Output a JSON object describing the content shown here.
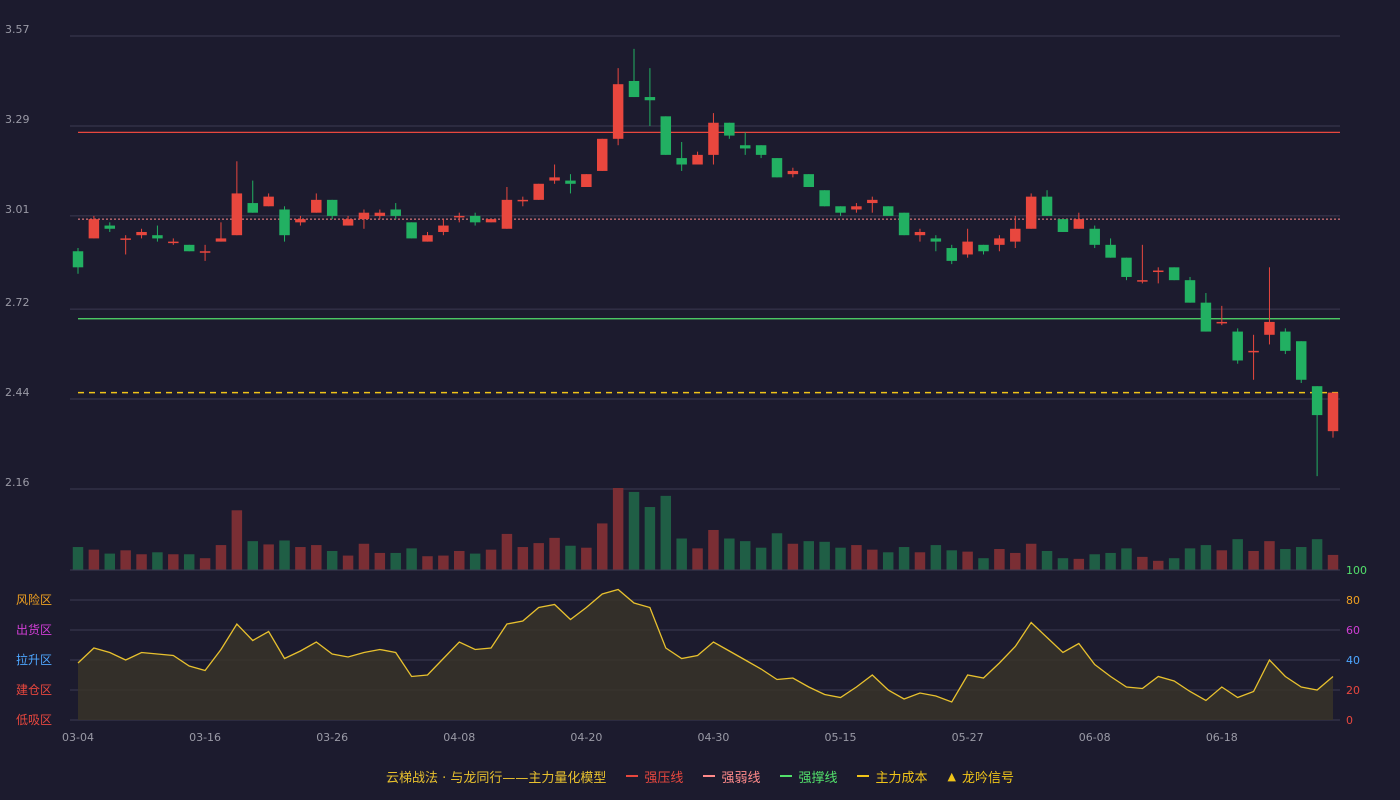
{
  "colors": {
    "background": "#1c1b2e",
    "up": "#e8473e",
    "down": "#22b062",
    "resistance": "#e8473e",
    "weak": "#ff8a8a",
    "support": "#52e06b",
    "cost": "#f0c419",
    "indicator_line": "#e8c12e",
    "grid": "#3b3b52",
    "axis_text": "#9a9aa6"
  },
  "chart_data": {
    "type": "candlestick",
    "price_ticks": [
      3.57,
      3.29,
      3.01,
      2.72,
      2.44,
      2.16
    ],
    "price_range": [
      2.16,
      3.57
    ],
    "x_ticks": [
      {
        "index": 0,
        "label": "03-04"
      },
      {
        "index": 8,
        "label": "03-16"
      },
      {
        "index": 16,
        "label": "03-26"
      },
      {
        "index": 24,
        "label": "04-08"
      },
      {
        "index": 32,
        "label": "04-20"
      },
      {
        "index": 40,
        "label": "04-30"
      },
      {
        "index": 48,
        "label": "05-15"
      },
      {
        "index": 56,
        "label": "05-27"
      },
      {
        "index": 64,
        "label": "06-08"
      },
      {
        "index": 72,
        "label": "06-18"
      }
    ],
    "candles": [
      [
        2.9,
        2.85,
        2.91,
        2.83
      ],
      [
        2.94,
        3.0,
        3.01,
        2.94
      ],
      [
        2.98,
        2.97,
        2.99,
        2.96
      ],
      [
        2.94,
        2.94,
        2.95,
        2.89
      ],
      [
        2.95,
        2.96,
        2.97,
        2.94
      ],
      [
        2.95,
        2.94,
        2.98,
        2.93
      ],
      [
        2.93,
        2.93,
        2.94,
        2.92
      ],
      [
        2.92,
        2.9,
        2.92,
        2.9
      ],
      [
        2.9,
        2.9,
        2.92,
        2.87
      ],
      [
        2.93,
        2.94,
        2.99,
        2.93
      ],
      [
        2.95,
        3.08,
        3.18,
        2.95
      ],
      [
        3.05,
        3.02,
        3.12,
        3.02
      ],
      [
        3.04,
        3.07,
        3.08,
        3.04
      ],
      [
        3.03,
        2.95,
        3.04,
        2.93
      ],
      [
        2.99,
        3.0,
        3.01,
        2.98
      ],
      [
        3.02,
        3.06,
        3.08,
        3.02
      ],
      [
        3.06,
        3.01,
        3.06,
        3.0
      ],
      [
        2.98,
        3.0,
        3.01,
        2.98
      ],
      [
        3.0,
        3.02,
        3.03,
        2.97
      ],
      [
        3.01,
        3.02,
        3.03,
        3.0
      ],
      [
        3.03,
        3.01,
        3.05,
        3.0
      ],
      [
        2.99,
        2.94,
        2.99,
        2.94
      ],
      [
        2.93,
        2.95,
        2.96,
        2.93
      ],
      [
        2.96,
        2.98,
        3.0,
        2.95
      ],
      [
        3.01,
        3.01,
        3.02,
        2.99
      ],
      [
        3.01,
        2.99,
        3.02,
        2.98
      ],
      [
        2.99,
        3.0,
        3.0,
        2.99
      ],
      [
        2.97,
        3.06,
        3.1,
        2.97
      ],
      [
        3.06,
        3.06,
        3.07,
        3.04
      ],
      [
        3.06,
        3.11,
        3.11,
        3.06
      ],
      [
        3.12,
        3.13,
        3.17,
        3.11
      ],
      [
        3.12,
        3.11,
        3.14,
        3.08
      ],
      [
        3.1,
        3.14,
        3.14,
        3.1
      ],
      [
        3.15,
        3.25,
        3.25,
        3.15
      ],
      [
        3.25,
        3.42,
        3.47,
        3.23
      ],
      [
        3.43,
        3.38,
        3.53,
        3.38
      ],
      [
        3.38,
        3.37,
        3.47,
        3.29
      ],
      [
        3.32,
        3.2,
        3.32,
        3.2
      ],
      [
        3.19,
        3.17,
        3.24,
        3.15
      ],
      [
        3.17,
        3.2,
        3.21,
        3.17
      ],
      [
        3.2,
        3.3,
        3.33,
        3.17
      ],
      [
        3.3,
        3.26,
        3.3,
        3.25
      ],
      [
        3.23,
        3.22,
        3.27,
        3.2
      ],
      [
        3.23,
        3.2,
        3.23,
        3.19
      ],
      [
        3.19,
        3.13,
        3.19,
        3.13
      ],
      [
        3.14,
        3.15,
        3.16,
        3.13
      ],
      [
        3.14,
        3.1,
        3.14,
        3.1
      ],
      [
        3.09,
        3.04,
        3.09,
        3.04
      ],
      [
        3.04,
        3.02,
        3.04,
        3.01
      ],
      [
        3.03,
        3.04,
        3.05,
        3.02
      ],
      [
        3.05,
        3.06,
        3.07,
        3.02
      ],
      [
        3.04,
        3.01,
        3.04,
        3.01
      ],
      [
        3.02,
        2.95,
        3.02,
        2.95
      ],
      [
        2.95,
        2.96,
        2.97,
        2.93
      ],
      [
        2.94,
        2.93,
        2.95,
        2.9
      ],
      [
        2.91,
        2.87,
        2.92,
        2.86
      ],
      [
        2.89,
        2.93,
        2.97,
        2.88
      ],
      [
        2.92,
        2.9,
        2.92,
        2.89
      ],
      [
        2.92,
        2.94,
        2.95,
        2.9
      ],
      [
        2.93,
        2.97,
        3.01,
        2.91
      ],
      [
        2.97,
        3.07,
        3.08,
        2.97
      ],
      [
        3.07,
        3.01,
        3.09,
        3.01
      ],
      [
        3.0,
        2.96,
        3.0,
        2.96
      ],
      [
        2.97,
        3.0,
        3.02,
        2.97
      ],
      [
        2.97,
        2.92,
        2.98,
        2.91
      ],
      [
        2.92,
        2.88,
        2.94,
        2.88
      ],
      [
        2.88,
        2.82,
        2.88,
        2.81
      ],
      [
        2.81,
        2.81,
        2.92,
        2.8
      ],
      [
        2.84,
        2.84,
        2.85,
        2.8
      ],
      [
        2.85,
        2.81,
        2.85,
        2.81
      ],
      [
        2.81,
        2.74,
        2.82,
        2.74
      ],
      [
        2.74,
        2.65,
        2.77,
        2.65
      ],
      [
        2.68,
        2.68,
        2.73,
        2.67
      ],
      [
        2.65,
        2.56,
        2.66,
        2.55
      ],
      [
        2.59,
        2.59,
        2.64,
        2.5
      ],
      [
        2.64,
        2.68,
        2.85,
        2.61
      ],
      [
        2.65,
        2.59,
        2.66,
        2.58
      ],
      [
        2.62,
        2.5,
        2.62,
        2.49
      ],
      [
        2.48,
        2.39,
        2.48,
        2.2
      ],
      [
        2.34,
        2.46,
        2.46,
        2.32
      ]
    ],
    "volume": [
      35,
      31,
      25,
      30,
      24,
      27,
      24,
      24,
      18,
      38,
      91,
      44,
      39,
      45,
      35,
      38,
      29,
      22,
      40,
      26,
      26,
      33,
      21,
      22,
      29,
      25,
      31,
      55,
      35,
      41,
      49,
      37,
      34,
      71,
      125,
      119,
      96,
      113,
      48,
      33,
      61,
      48,
      44,
      34,
      56,
      40,
      44,
      43,
      34,
      38,
      31,
      27,
      35,
      27,
      38,
      30,
      28,
      18,
      32,
      26,
      40,
      29,
      18,
      17,
      24,
      26,
      33,
      20,
      14,
      18,
      33,
      38,
      30,
      47,
      29,
      44,
      32,
      35,
      47,
      23
    ],
    "indicator": {
      "values": [
        38,
        48,
        45,
        40,
        45,
        44,
        43,
        36,
        33,
        47,
        64,
        53,
        59,
        41,
        46,
        52,
        44,
        42,
        45,
        47,
        45,
        29,
        30,
        41,
        52,
        47,
        48,
        64,
        66,
        75,
        77,
        67,
        75,
        84,
        87,
        78,
        75,
        48,
        41,
        43,
        52,
        46,
        40,
        34,
        27,
        28,
        22,
        17,
        15,
        22,
        30,
        20,
        14,
        18,
        16,
        12,
        30,
        28,
        38,
        49,
        65,
        55,
        45,
        51,
        37,
        29,
        22,
        21,
        29,
        26,
        19,
        13,
        22,
        15,
        19,
        40,
        29,
        22,
        20,
        29
      ],
      "range": [
        0,
        100
      ],
      "ticks": [
        0,
        20,
        40,
        60,
        80,
        100
      ],
      "zones": [
        {
          "label": "风险区",
          "color": "#f0a020"
        },
        {
          "label": "出货区",
          "color": "#d23ed6"
        },
        {
          "label": "拉升区",
          "color": "#4da6ff"
        },
        {
          "label": "建仓区",
          "color": "#e8473e"
        },
        {
          "label": "低吸区",
          "color": "#e8473e"
        }
      ]
    },
    "lines": {
      "resistance": 3.27,
      "weak": 3.0,
      "support": 2.69,
      "cost": 2.46
    }
  },
  "legend": {
    "title": "云梯战法 · 与龙同行——主力量化模型",
    "items": [
      {
        "label": "强压线",
        "color": "#e8473e",
        "style": "solid"
      },
      {
        "label": "强弱线",
        "color": "#ff8a8a",
        "style": "dash"
      },
      {
        "label": "强撑线",
        "color": "#52e06b",
        "style": "solid"
      },
      {
        "label": "主力成本",
        "color": "#f0c419",
        "style": "dash"
      },
      {
        "label": "龙吟信号",
        "color": "#f0c419",
        "style": "triangle"
      }
    ]
  }
}
